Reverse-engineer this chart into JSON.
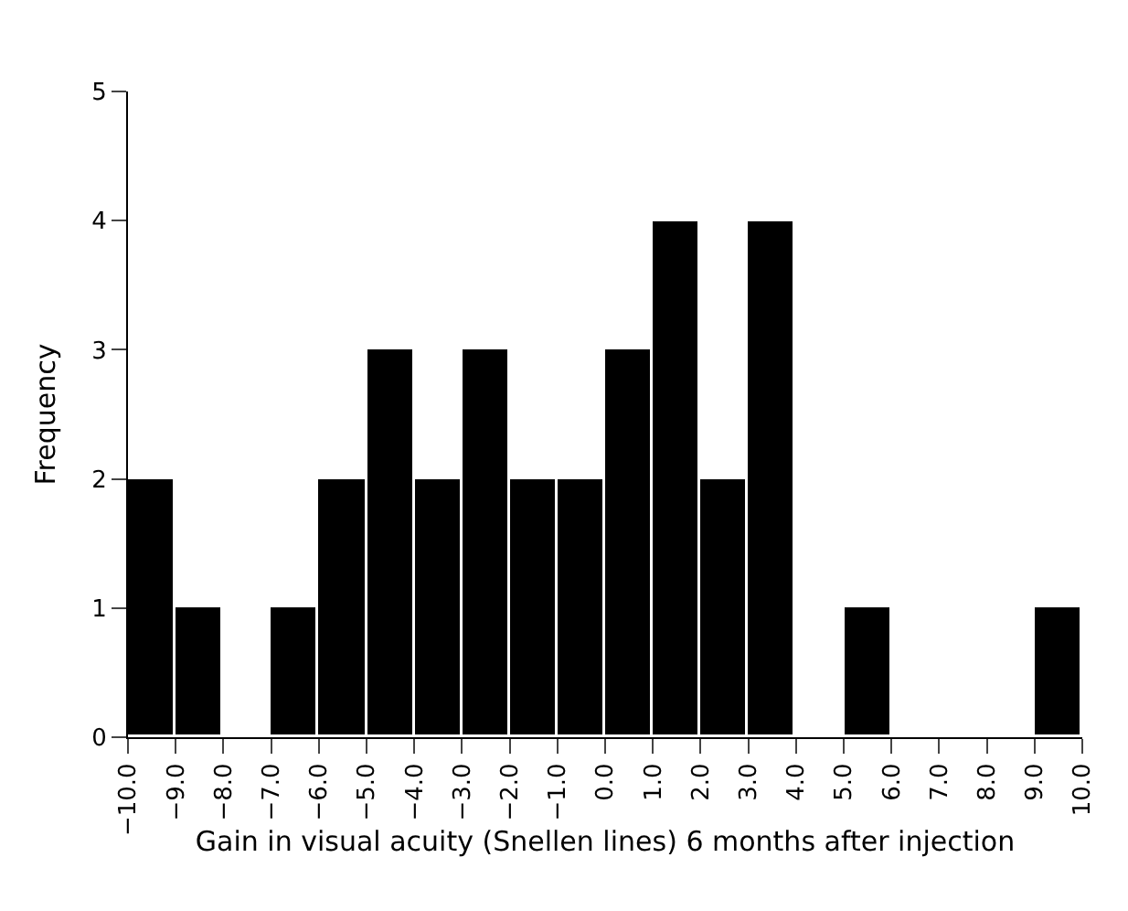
{
  "chart_data": {
    "type": "histogram",
    "xlabel": "Gain in visual acuity (Snellen lines) 6 months after injection",
    "ylabel": "Frequency",
    "bins": [
      -10,
      -9,
      -8,
      -7,
      -6,
      -5,
      -4,
      -3,
      -2,
      -1,
      0,
      1,
      2,
      3,
      4,
      5,
      6,
      7,
      8,
      9,
      10
    ],
    "values": [
      2,
      1,
      0,
      1,
      2,
      3,
      2,
      3,
      2,
      2,
      3,
      4,
      2,
      4,
      0,
      1,
      0,
      0,
      0,
      1
    ],
    "color": "#000000",
    "xlim": [
      -10,
      10
    ],
    "xticks": [
      {
        "value": -10,
        "label": "−10.0"
      },
      {
        "value": -9,
        "label": "−9.0"
      },
      {
        "value": -8,
        "label": "−8.0"
      },
      {
        "value": -7,
        "label": "−7.0"
      },
      {
        "value": -6,
        "label": "−6.0"
      },
      {
        "value": -5,
        "label": "−5.0"
      },
      {
        "value": -4,
        "label": "−4.0"
      },
      {
        "value": -3,
        "label": "−3.0"
      },
      {
        "value": -2,
        "label": "−2.0"
      },
      {
        "value": -1,
        "label": "−1.0"
      },
      {
        "value": 0,
        "label": "0.0"
      },
      {
        "value": 1,
        "label": "1.0"
      },
      {
        "value": 2,
        "label": "2.0"
      },
      {
        "value": 3,
        "label": "3.0"
      },
      {
        "value": 4,
        "label": "4.0"
      },
      {
        "value": 5,
        "label": "5.0"
      },
      {
        "value": 6,
        "label": "6.0"
      },
      {
        "value": 7,
        "label": "7.0"
      },
      {
        "value": 8,
        "label": "8.0"
      },
      {
        "value": 9,
        "label": "9.0"
      },
      {
        "value": 10,
        "label": "10.0"
      }
    ],
    "ylim": [
      0,
      5
    ],
    "yticks": [
      0,
      1,
      2,
      3,
      4,
      5
    ],
    "grid": false
  }
}
